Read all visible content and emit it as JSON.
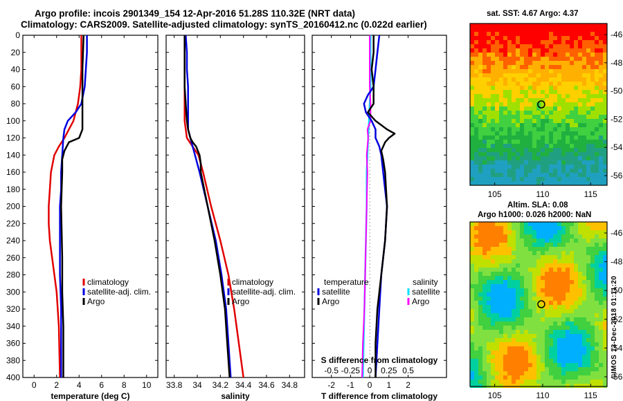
{
  "header": {
    "title_line1": "Argo profile: incois 2901349_154 12-Apr-2016 51.28S 110.32E (NRT data)",
    "title_line2": "Climatology: CARS2009. Satellite-adjusted climatology: synTS_20160412.nc (0.022d earlier)"
  },
  "side_text": {
    "sst": "sat. SST: 4.67 Argo: 4.37",
    "sla": "Altim. SLA: 0.08",
    "heights": "Argo h1000: 0.026 h2000: NaN",
    "credit": "©IMOS 13-Dec-2018 01:11:20"
  },
  "colors": {
    "climatology": "#e00000",
    "satellite": "#0000e0",
    "argo": "#000000",
    "argo_s": "#ff00ff",
    "sat_s": "#00e0ff"
  },
  "chart_data": [
    {
      "type": "line",
      "xlabel": "temperature (deg C)",
      "ylabel": "depth",
      "xlim": [
        -1,
        11
      ],
      "ylim": [
        0,
        400
      ],
      "xticks": [
        "0",
        "2",
        "4",
        "6",
        "8",
        "10"
      ],
      "yticks": [
        "0",
        "20",
        "40",
        "60",
        "80",
        "100",
        "120",
        "140",
        "160",
        "180",
        "200",
        "220",
        "240",
        "260",
        "280",
        "300",
        "320",
        "340",
        "360",
        "380",
        "400"
      ],
      "legend": [
        "climatology",
        "satellite-adj. clim.",
        "Argo"
      ],
      "series": [
        {
          "name": "climatology",
          "depth": [
            0,
            20,
            40,
            60,
            80,
            100,
            110,
            120,
            130,
            140,
            160,
            180,
            200,
            220,
            240,
            260,
            300,
            340,
            400
          ],
          "values": [
            4.2,
            4.2,
            4.2,
            4.1,
            3.9,
            3.5,
            3.1,
            2.7,
            2.2,
            1.8,
            1.5,
            1.4,
            1.3,
            1.3,
            1.4,
            1.6,
            2.0,
            2.2,
            2.3
          ]
        },
        {
          "name": "satellite-adj. clim.",
          "depth": [
            0,
            20,
            40,
            60,
            80,
            90,
            100,
            110,
            120,
            140,
            160,
            180,
            200,
            240,
            280,
            320,
            360,
            400
          ],
          "values": [
            4.7,
            4.7,
            4.6,
            4.5,
            4.2,
            3.7,
            3.0,
            2.7,
            2.6,
            2.5,
            2.4,
            2.4,
            2.3,
            2.3,
            2.3,
            2.4,
            2.4,
            2.4
          ]
        },
        {
          "name": "Argo",
          "depth": [
            0,
            40,
            60,
            80,
            110,
            120,
            125,
            135,
            145,
            160,
            200,
            260,
            300,
            340,
            400
          ],
          "values": [
            4.4,
            4.3,
            4.3,
            4.3,
            4.3,
            4.0,
            3.1,
            2.7,
            2.5,
            2.5,
            2.4,
            2.5,
            2.5,
            2.6,
            2.6
          ]
        }
      ]
    },
    {
      "type": "line",
      "xlabel": "salinity",
      "ylabel": "depth",
      "xlim": [
        33.73,
        34.93
      ],
      "ylim": [
        0,
        400
      ],
      "xticks": [
        "33.8",
        "34",
        "34.2",
        "34.4",
        "34.6",
        "34.8"
      ],
      "legend": [
        "climatology",
        "satellite-adj. clim.",
        "Argo"
      ],
      "series": [
        {
          "name": "climatology",
          "depth": [
            0,
            20,
            40,
            60,
            80,
            100,
            120,
            130,
            140,
            160,
            200,
            240,
            280,
            320,
            360,
            400
          ],
          "values": [
            33.89,
            33.89,
            33.89,
            33.89,
            33.89,
            33.89,
            33.91,
            33.96,
            34.01,
            34.05,
            34.12,
            34.2,
            34.27,
            34.32,
            34.36,
            34.4
          ]
        },
        {
          "name": "satellite-adj. clim.",
          "depth": [
            0,
            20,
            40,
            60,
            80,
            100,
            110,
            120,
            130,
            140,
            160,
            200,
            240,
            280,
            320,
            360,
            400
          ],
          "values": [
            33.9,
            33.91,
            33.91,
            33.92,
            33.92,
            33.92,
            33.92,
            33.94,
            33.96,
            33.98,
            34.02,
            34.09,
            34.16,
            34.21,
            34.25,
            34.27,
            34.29
          ]
        },
        {
          "name": "Argo",
          "depth": [
            0,
            20,
            40,
            60,
            80,
            100,
            110,
            120,
            125,
            130,
            140,
            150,
            160,
            200,
            240,
            280,
            320,
            360,
            400
          ],
          "values": [
            33.89,
            33.89,
            33.89,
            33.89,
            33.9,
            33.91,
            33.92,
            33.94,
            33.96,
            33.99,
            34.02,
            34.03,
            34.03,
            34.09,
            34.15,
            34.2,
            34.24,
            34.26,
            34.28
          ]
        }
      ]
    },
    {
      "type": "line",
      "xlabel": "T difference from climatology",
      "xlabel2": "S difference from climatology",
      "xlim": [
        -3,
        4
      ],
      "s_xlim": [
        -0.75,
        1.0
      ],
      "ylim": [
        0,
        400
      ],
      "xticks": [
        "-2",
        "-1",
        "0",
        "1",
        "2"
      ],
      "s_xticks": [
        "-0.5",
        "-0.25",
        "0",
        "0.25",
        "0.5"
      ],
      "legend_temperature_title": "temperature",
      "legend_salinity_title": "salinity",
      "legend_temperature": [
        "satellite",
        "Argo"
      ],
      "legend_salinity": [
        "satellite",
        "Argo"
      ],
      "series": [
        {
          "name": "T satellite",
          "depth": [
            0,
            20,
            40,
            60,
            70,
            80,
            90,
            100,
            110,
            120,
            130,
            140,
            160,
            200,
            240,
            280,
            320,
            360,
            400
          ],
          "values": [
            0.5,
            0.4,
            0.3,
            0.2,
            -0.1,
            -0.3,
            -0.2,
            0.1,
            0.3,
            0.3,
            0.5,
            0.6,
            0.7,
            0.9,
            0.8,
            0.6,
            0.5,
            0.4,
            0.3
          ]
        },
        {
          "name": "T Argo",
          "depth": [
            0,
            20,
            40,
            60,
            80,
            90,
            100,
            110,
            115,
            120,
            125,
            135,
            145,
            160,
            200,
            240,
            280,
            320,
            360,
            400
          ],
          "values": [
            0.2,
            0.2,
            0.1,
            0.2,
            0.2,
            -0.1,
            0.3,
            0.9,
            1.3,
            1.0,
            0.8,
            0.6,
            0.7,
            0.8,
            0.9,
            0.8,
            0.6,
            0.4,
            0.3,
            0.3
          ]
        },
        {
          "name": "S satellite",
          "depth": [
            0,
            20,
            40,
            60,
            80,
            100,
            120,
            140,
            160,
            200,
            240,
            280,
            320,
            360,
            400
          ],
          "values": [
            0.01,
            0.01,
            0.01,
            0.01,
            0.0,
            -0.01,
            -0.02,
            -0.03,
            -0.04,
            -0.04,
            -0.05,
            -0.06,
            -0.07,
            -0.08,
            -0.09
          ]
        },
        {
          "name": "S Argo",
          "depth": [
            0,
            20,
            40,
            60,
            80,
            100,
            110,
            120,
            130,
            140,
            160,
            200,
            240,
            280,
            320,
            360,
            400
          ],
          "values": [
            0.0,
            0.0,
            0.0,
            0.0,
            0.01,
            0.01,
            -0.03,
            -0.02,
            -0.03,
            -0.04,
            -0.03,
            -0.04,
            -0.05,
            -0.06,
            -0.07,
            -0.09,
            -0.1
          ]
        }
      ]
    },
    {
      "type": "heatmap",
      "title": "SST map",
      "xticks": [
        "105",
        "110",
        "115"
      ],
      "yticks": [
        "-46",
        "-48",
        "-50",
        "-52",
        "-54",
        "-56"
      ],
      "marker": "Argo position 110.32E 51.28S"
    },
    {
      "type": "heatmap",
      "title": "SLA map",
      "xticks": [
        "105",
        "110",
        "115"
      ],
      "yticks": [
        "-46",
        "-48",
        "-50",
        "-52",
        "-54",
        "-56"
      ],
      "marker": "Argo position 110.32E 51.28S"
    }
  ]
}
